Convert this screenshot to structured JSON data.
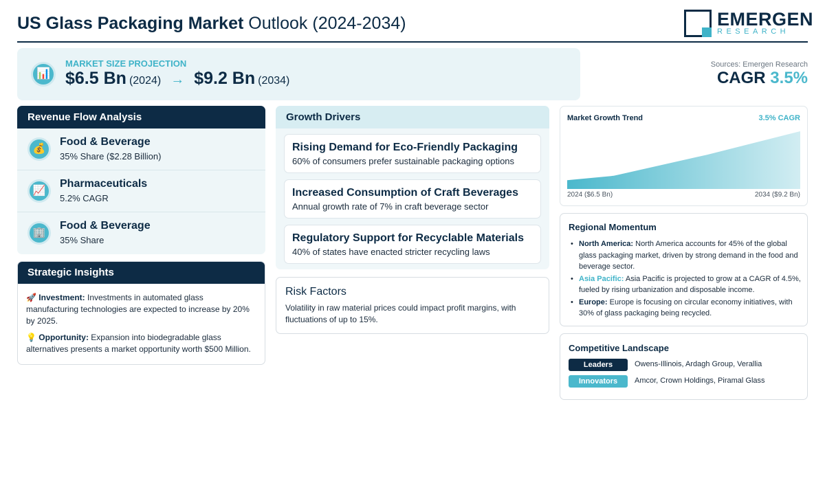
{
  "header": {
    "title_bold": "US Glass Packaging Market",
    "title_rest": "Outlook (2024-2034)",
    "logo_name": "EMERGEN",
    "logo_sub": "RESEARCH"
  },
  "projection": {
    "label": "MARKET SIZE PROJECTION",
    "icon": "bar-chart-icon",
    "start_value": "$6.5 Bn",
    "start_year": "(2024)",
    "arrow": "→",
    "end_value": "$9.2 Bn",
    "end_year": "(2034)"
  },
  "summary": {
    "sources": "Sources: Emergen Research",
    "cagr_label": "CAGR",
    "cagr_value": "3.5%"
  },
  "revenue": {
    "title": "Revenue Flow Analysis",
    "items": [
      {
        "icon": "💰",
        "icon_name": "money-bag-icon",
        "title": "Food & Beverage",
        "sub": "35% Share ($2.28 Billion)"
      },
      {
        "icon": "📈",
        "icon_name": "trend-up-icon",
        "title": "Pharmaceuticals",
        "sub": "5.2% CAGR"
      },
      {
        "icon": "🏢",
        "icon_name": "building-icon",
        "title": "Food & Beverage",
        "sub": "35% Share"
      }
    ]
  },
  "insights": {
    "title": "Strategic Insights",
    "items": [
      {
        "icon": "🚀",
        "label": "Investment:",
        "text": "Investments in automated glass manufacturing technologies are expected to increase by 20% by 2025."
      },
      {
        "icon": "💡",
        "label": "Opportunity:",
        "text": "Expansion into biodegradable glass alternatives presents a market opportunity worth $500 Million."
      }
    ]
  },
  "drivers": {
    "title": "Growth Drivers",
    "items": [
      {
        "title": "Rising Demand for Eco-Friendly Packaging",
        "sub": "60% of consumers prefer sustainable packaging options"
      },
      {
        "title": "Increased Consumption of Craft Beverages",
        "sub": "Annual growth rate of 7% in craft beverage sector"
      },
      {
        "title": "Regulatory Support for Recyclable Materials",
        "sub": "40% of states have enacted stricter recycling laws"
      }
    ]
  },
  "risk": {
    "title": "Risk Factors",
    "text": "Volatility in raw material prices could impact profit margins, with fluctuations of up to 15%."
  },
  "trend": {
    "title": "Market Growth Trend",
    "cagr": "3.5% CAGR",
    "start_label": "2024 ($6.5 Bn)",
    "end_label": "2034 ($9.2 Bn)",
    "fill_color": "#4bb8cc"
  },
  "chart_data": {
    "type": "area",
    "x": [
      2024,
      2034
    ],
    "values": [
      6.5,
      9.2
    ],
    "title": "Market Growth Trend"
  },
  "regional": {
    "title": "Regional Momentum",
    "items": [
      {
        "region": "North America:",
        "text": "North America accounts for 45% of the global glass packaging market, driven by strong demand in the food and beverage sector."
      },
      {
        "region": "Asia Pacific:",
        "text": "Asia Pacific is projected to grow at a CAGR of 4.5%, fueled by rising urbanization and disposable income."
      },
      {
        "region": "Europe:",
        "text": "Europe is focusing on circular economy initiatives, with 30% of glass packaging being recycled."
      }
    ]
  },
  "competitive": {
    "title": "Competitive Landscape",
    "rows": [
      {
        "badge": "Leaders",
        "color": "#0d2b45",
        "names": "Owens-Illinois, Ardagh Group, Verallia"
      },
      {
        "badge": "Innovators",
        "color": "#4bb8cc",
        "names": "Amcor, Crown Holdings, Piramal Glass"
      }
    ]
  }
}
